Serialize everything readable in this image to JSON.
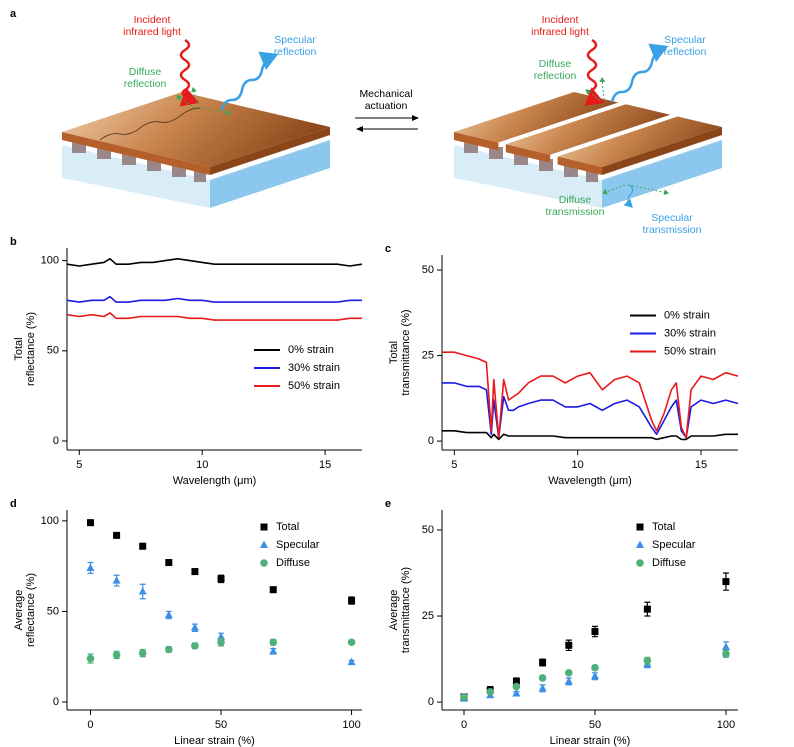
{
  "diagram": {
    "panel": "a",
    "left": {
      "incident": [
        "Incident",
        "infrared light"
      ],
      "specular": [
        "Specular",
        "reflection"
      ],
      "diffuse": [
        "Diffuse",
        "reflection"
      ]
    },
    "actuation": [
      "Mechanical",
      "actuation"
    ],
    "right": {
      "incident": [
        "Incident",
        "infrared light"
      ],
      "specular": [
        "Specular",
        "reflection"
      ],
      "diffuse": [
        "Diffuse",
        "reflection"
      ],
      "diffuse_transmission": [
        "Diffuse",
        "transmission"
      ],
      "specular_transmission": [
        "Specular",
        "transmission"
      ]
    }
  },
  "chart_data": [
    {
      "type": "line",
      "panel": "b",
      "xlabel": "Wavelength (μm)",
      "ylabel": [
        "Total",
        "reflectance (%)"
      ],
      "xlim": [
        4.5,
        16.5
      ],
      "xticks": [
        5,
        10,
        15
      ],
      "ylim": [
        -5,
        107
      ],
      "yticks": [
        0,
        50,
        100
      ],
      "legend": "lower right",
      "x": [
        4.5,
        5,
        5.5,
        6,
        6.25,
        6.5,
        7,
        7.5,
        8,
        8.5,
        9,
        9.5,
        10,
        10.5,
        11,
        11.5,
        12,
        12.5,
        13,
        13.5,
        14,
        14.5,
        15,
        15.5,
        16,
        16.5
      ],
      "series": [
        {
          "name": "0% strain",
          "color": "#000000",
          "values": [
            98,
            97,
            98,
            99,
            101,
            98,
            98,
            99,
            99,
            100,
            101,
            100,
            99,
            98,
            98,
            98,
            98,
            98,
            98,
            98,
            98,
            98,
            98,
            98,
            97,
            98
          ]
        },
        {
          "name": "30% strain",
          "color": "#1a1ae6",
          "values": [
            78,
            77,
            78,
            78,
            80,
            77,
            77,
            78,
            78,
            78,
            79,
            78,
            78,
            77,
            77,
            77,
            77,
            77,
            77,
            77,
            77,
            77,
            77,
            77,
            78,
            78
          ]
        },
        {
          "name": "50% strain",
          "color": "#e61a1a",
          "values": [
            70,
            69,
            70,
            69,
            71,
            68,
            68,
            69,
            69,
            69,
            69,
            68,
            68,
            67,
            67,
            67,
            67,
            67,
            67,
            67,
            67,
            67,
            67,
            67,
            68,
            68
          ]
        }
      ]
    },
    {
      "type": "line",
      "panel": "c",
      "xlabel": "Wavelength (μm)",
      "ylabel": [
        "Total",
        "transmittance (%)"
      ],
      "xlim": [
        4.5,
        16.5
      ],
      "xticks": [
        5,
        10,
        15
      ],
      "ylim": [
        -2.6,
        54.4
      ],
      "yticks": [
        0,
        25,
        50
      ],
      "legend": "center right",
      "x": [
        4.5,
        5,
        5.5,
        6,
        6.3,
        6.5,
        6.6,
        6.8,
        7,
        7.2,
        7.4,
        7.6,
        8,
        8.5,
        9,
        9.5,
        10,
        10.5,
        11,
        11.5,
        12,
        12.5,
        13,
        13.2,
        13.5,
        13.8,
        14,
        14.2,
        14.4,
        14.6,
        15,
        15.5,
        16,
        16.5
      ],
      "series": [
        {
          "name": "0% strain",
          "color": "#000000",
          "values": [
            3,
            3,
            2.5,
            2.5,
            2.5,
            1,
            2,
            0.5,
            2,
            1.5,
            1.5,
            1.5,
            1.5,
            1.5,
            1.5,
            1,
            1,
            1,
            1,
            1,
            1,
            1,
            1,
            0.5,
            1,
            1.5,
            1.5,
            0.5,
            0.5,
            1.5,
            1.5,
            1.5,
            2,
            2
          ]
        },
        {
          "name": "30% strain",
          "color": "#1a1ae6",
          "values": [
            17,
            17,
            16,
            16,
            15,
            2,
            12,
            1,
            13,
            9,
            9,
            10,
            11,
            12,
            12,
            10,
            10,
            11,
            9,
            11,
            12,
            10,
            4,
            2,
            6,
            10,
            12,
            3,
            1,
            10,
            12,
            11,
            12,
            11
          ]
        },
        {
          "name": "50% strain",
          "color": "#e61a1a",
          "values": [
            26,
            26,
            25,
            24,
            23,
            3,
            18,
            1,
            18,
            12,
            13,
            14,
            17,
            19,
            19,
            17,
            19,
            20,
            15,
            18,
            19,
            17,
            6,
            3,
            8,
            15,
            17,
            4,
            1,
            15,
            19,
            18,
            20,
            19
          ]
        }
      ]
    },
    {
      "type": "scatter",
      "panel": "d",
      "xlabel": "Linear strain (%)",
      "ylabel": [
        "Average",
        "reflectance (%)"
      ],
      "xlim": [
        -9,
        104
      ],
      "xticks": [
        0,
        50,
        100
      ],
      "ylim": [
        -4.4,
        106
      ],
      "yticks": [
        0,
        50,
        100
      ],
      "legend": "upper right",
      "x": [
        0,
        10,
        20,
        30,
        40,
        50,
        70,
        100
      ],
      "series": [
        {
          "name": "Total",
          "color": "#000000",
          "marker": "s",
          "values": [
            99,
            92,
            86,
            77,
            72,
            68,
            62,
            56
          ],
          "errors": [
            1.5,
            1.5,
            1.5,
            1.5,
            1.5,
            2,
            1.5,
            2
          ]
        },
        {
          "name": "Specular",
          "color": "#3d8fe6",
          "marker": "^",
          "values": [
            74,
            67,
            61,
            48,
            41,
            36,
            28,
            22
          ],
          "errors": [
            3,
            3,
            4,
            2,
            2,
            2,
            1.5,
            1
          ]
        },
        {
          "name": "Diffuse",
          "color": "#4fb07a",
          "marker": "o",
          "values": [
            24,
            26,
            27,
            29,
            31,
            33,
            33,
            33
          ],
          "errors": [
            2.5,
            2,
            2,
            1.5,
            1.5,
            2,
            1.5,
            1
          ]
        }
      ]
    },
    {
      "type": "scatter",
      "panel": "e",
      "xlabel": "Linear strain (%)",
      "ylabel": [
        "Average",
        "transmittance (%)"
      ],
      "xlim": [
        -8.4,
        104.6
      ],
      "xticks": [
        0,
        50,
        100
      ],
      "ylim": [
        -2.3,
        55.8
      ],
      "yticks": [
        0,
        25,
        50
      ],
      "legend": "upper right",
      "x": [
        0,
        10,
        20,
        30,
        40,
        50,
        70,
        100
      ],
      "series": [
        {
          "name": "Total",
          "color": "#000000",
          "marker": "s",
          "values": [
            1.5,
            3.5,
            6,
            11.5,
            16.5,
            20.5,
            27,
            35
          ],
          "errors": [
            0.5,
            1,
            1,
            1,
            1.5,
            1.5,
            2,
            2.5
          ]
        },
        {
          "name": "Specular",
          "color": "#3d8fe6",
          "marker": "^",
          "values": [
            1,
            2,
            2.5,
            4,
            6,
            7.5,
            11,
            16
          ],
          "errors": [
            0.5,
            0.5,
            0.5,
            1,
            1,
            1,
            1,
            1.5
          ]
        },
        {
          "name": "Diffuse",
          "color": "#4fb07a",
          "marker": "o",
          "values": [
            1.5,
            3,
            4.5,
            7,
            8.5,
            10,
            12,
            14
          ],
          "errors": [
            0.5,
            0.5,
            0.5,
            0.5,
            0.5,
            0.5,
            1,
            1
          ]
        }
      ]
    }
  ]
}
